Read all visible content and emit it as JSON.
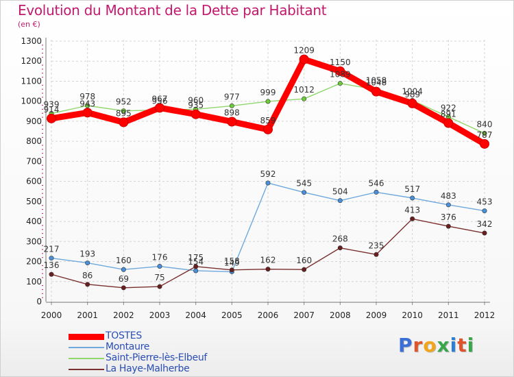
{
  "title": "Evolution du Montant de la Dette par Habitant",
  "unit": "(en €)",
  "logo": "Proxiti",
  "chart_data": {
    "type": "line",
    "title": "Evolution du Montant de la Dette par Habitant",
    "ylabel": "(en €)",
    "ylim": [
      0,
      1300
    ],
    "yticks": [
      0,
      100,
      200,
      300,
      400,
      500,
      600,
      700,
      800,
      900,
      1000,
      1100,
      1200,
      1300
    ],
    "categories": [
      "2000",
      "2001",
      "2002",
      "2003",
      "2004",
      "2005",
      "2006",
      "2007",
      "2008",
      "2009",
      "2010",
      "2011",
      "2012"
    ],
    "grid": true,
    "legend": "bottom-left",
    "series": [
      {
        "name": "TOSTES",
        "color": "#ff0000",
        "values": [
          914,
          943,
          895,
          967,
          935,
          898,
          859,
          1209,
          1150,
          1048,
          989,
          891,
          787
        ]
      },
      {
        "name": "Montaure",
        "color": "#6fa8dc",
        "values": [
          217,
          193,
          160,
          176,
          154,
          149,
          592,
          545,
          504,
          546,
          517,
          483,
          453
        ]
      },
      {
        "name": "Saint-Pierre-lès-Elbeuf",
        "color": "#8fd66b",
        "values": [
          939,
          978,
          952,
          956,
          960,
          977,
          999,
          1012,
          1089,
          1058,
          1004,
          922,
          840
        ]
      },
      {
        "name": "La Haye-Malherbe",
        "color": "#7a2e2e",
        "values": [
          136,
          86,
          69,
          75,
          175,
          158,
          162,
          160,
          268,
          235,
          413,
          376,
          342
        ]
      }
    ]
  }
}
